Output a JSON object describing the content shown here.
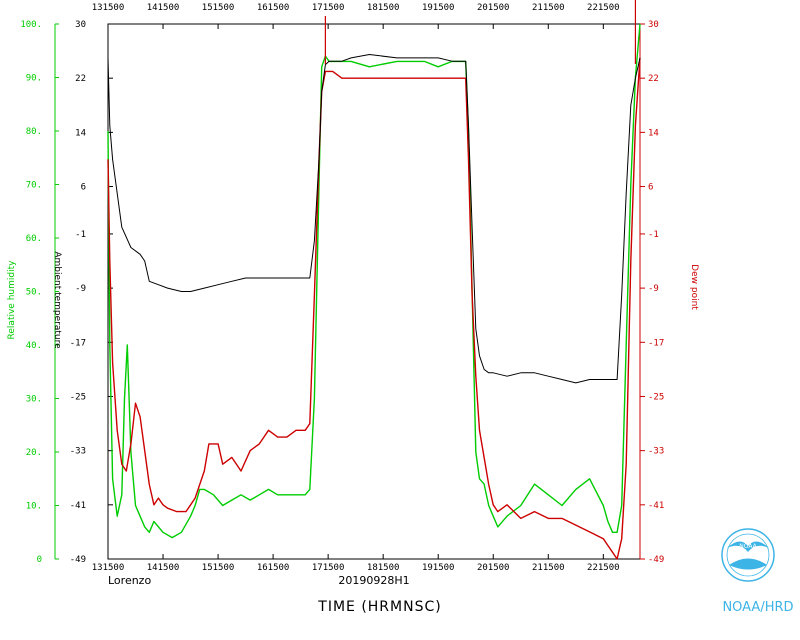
{
  "chart_data": {
    "type": "line",
    "xlabel": "TIME (HRMNSC)",
    "storm_label": "Lorenzo",
    "flight_label": "20190928H1",
    "xlim": [
      "13:15:00",
      "22:55:00"
    ],
    "x_ticks": [
      "131500",
      "141500",
      "151500",
      "161500",
      "171500",
      "181500",
      "191500",
      "201500",
      "211500",
      "221500"
    ],
    "x_tick_times": [
      "13:15",
      "14:15",
      "15:15",
      "16:15",
      "17:15",
      "18:15",
      "19:15",
      "20:15",
      "21:15",
      "22:15"
    ],
    "left_axis": {
      "label": "Relative humidity",
      "ylim": [
        0,
        100
      ],
      "ticks": [
        "0",
        "10.",
        "20.",
        "30.",
        "40.",
        "50.",
        "60.",
        "70.",
        "80.",
        "90.",
        "100."
      ],
      "tick_values": [
        0,
        10,
        20,
        30,
        40,
        50,
        60,
        70,
        80,
        90,
        100
      ],
      "color": "#00cc00"
    },
    "temp_axis": {
      "label": "Ambient temperature",
      "ylim": [
        -49,
        30
      ],
      "ticks": [
        "-49",
        "-41",
        "-33",
        "-25",
        "-17",
        "-9",
        "-1",
        "6",
        "14",
        "22",
        "30"
      ],
      "tick_values": [
        -49,
        -41,
        -33,
        -25,
        -17,
        -9,
        -1,
        6,
        14,
        22,
        30
      ],
      "color": "#000000"
    },
    "right_axis": {
      "label": "Dew point",
      "ylim": [
        -49,
        30
      ],
      "ticks": [
        "-49",
        "-41",
        "-33",
        "-25",
        "-17",
        "-9",
        "-1",
        "6",
        "14",
        "22",
        "30"
      ],
      "tick_values": [
        -49,
        -41,
        -33,
        -25,
        -17,
        -9,
        -1,
        6,
        14,
        22,
        30
      ],
      "color": "#cc0000"
    },
    "series": [
      {
        "name": "Ambient temperature",
        "axis": "temp",
        "color": "#000000",
        "x": [
          "13:15",
          "13:17",
          "13:20",
          "13:25",
          "13:30",
          "13:40",
          "13:50",
          "13:55",
          "14:00",
          "14:10",
          "14:20",
          "14:35",
          "14:45",
          "15:00",
          "15:15",
          "15:30",
          "15:45",
          "16:00",
          "16:15",
          "16:30",
          "16:45",
          "16:55",
          "17:00",
          "17:05",
          "17:08",
          "17:12",
          "17:16",
          "17:20",
          "17:30",
          "17:40",
          "18:00",
          "18:30",
          "19:00",
          "19:15",
          "19:30",
          "19:45",
          "19:48",
          "19:52",
          "19:56",
          "20:00",
          "20:05",
          "20:10",
          "20:15",
          "20:30",
          "20:45",
          "21:00",
          "21:15",
          "21:30",
          "21:45",
          "22:00",
          "22:15",
          "22:25",
          "22:30",
          "22:35",
          "22:40",
          "22:45",
          "22:50",
          "22:55"
        ],
        "y": [
          25,
          15,
          10,
          5,
          0,
          -3,
          -4,
          -5,
          -8,
          -8.5,
          -9,
          -9.5,
          -9.5,
          -9,
          -8.5,
          -8,
          -7.5,
          -7.5,
          -7.5,
          -7.5,
          -7.5,
          -7.5,
          -2,
          10,
          20,
          24,
          24.5,
          24.5,
          24.5,
          25,
          25.5,
          25,
          25,
          25,
          24.5,
          24.5,
          15,
          0,
          -15,
          -19,
          -21,
          -21.5,
          -21.5,
          -22,
          -21.5,
          -21.5,
          -22,
          -22.5,
          -23,
          -22.5,
          -22.5,
          -22.5,
          -22.5,
          -10,
          5,
          18,
          22,
          25
        ]
      },
      {
        "name": "Dew point",
        "axis": "dew",
        "color": "#cc0000",
        "x": [
          "13:15",
          "13:17",
          "13:20",
          "13:25",
          "13:30",
          "13:35",
          "13:40",
          "13:45",
          "13:50",
          "13:55",
          "14:00",
          "14:05",
          "14:10",
          "14:15",
          "14:20",
          "14:30",
          "14:40",
          "14:45",
          "14:50",
          "15:00",
          "15:05",
          "15:15",
          "15:20",
          "15:30",
          "15:40",
          "15:50",
          "16:00",
          "16:10",
          "16:20",
          "16:30",
          "16:40",
          "16:50",
          "16:55",
          "17:00",
          "17:05",
          "17:08",
          "17:12",
          "17:16",
          "17:20",
          "17:30",
          "17:40",
          "18:00",
          "18:30",
          "19:00",
          "19:15",
          "19:30",
          "19:45",
          "19:48",
          "19:52",
          "19:56",
          "20:00",
          "20:05",
          "20:10",
          "20:15",
          "20:20",
          "20:30",
          "20:45",
          "21:00",
          "21:15",
          "21:30",
          "21:45",
          "22:00",
          "22:15",
          "22:20",
          "22:25",
          "22:30",
          "22:35",
          "22:40",
          "22:45",
          "22:50",
          "22:55"
        ],
        "y": [
          10,
          -5,
          -20,
          -30,
          -35,
          -36,
          -32,
          -26,
          -28,
          -33,
          -38,
          -41,
          -40,
          -41,
          -41.5,
          -42,
          -42,
          -41,
          -40,
          -36,
          -32,
          -32,
          -35,
          -34,
          -36,
          -33,
          -32,
          -30,
          -31,
          -31,
          -30,
          -30,
          -29,
          -10,
          10,
          20,
          23,
          23,
          23,
          22,
          22,
          22,
          22,
          22,
          22,
          22,
          22,
          10,
          -10,
          -22,
          -30,
          -34,
          -38,
          -41,
          -42,
          -41,
          -43,
          -42,
          -43,
          -43,
          -44,
          -45,
          -46,
          -47,
          -48,
          -49,
          -46,
          -35,
          -5,
          15,
          25
        ]
      },
      {
        "name": "Relative humidity",
        "axis": "rh",
        "color": "#00cc00",
        "x": [
          "13:15",
          "13:17",
          "13:20",
          "13:25",
          "13:30",
          "13:33",
          "13:36",
          "13:40",
          "13:45",
          "13:50",
          "13:55",
          "14:00",
          "14:05",
          "14:15",
          "14:25",
          "14:35",
          "14:45",
          "14:50",
          "14:55",
          "15:00",
          "15:10",
          "15:20",
          "15:30",
          "15:40",
          "15:50",
          "16:00",
          "16:10",
          "16:20",
          "16:30",
          "16:40",
          "16:50",
          "16:55",
          "17:00",
          "17:05",
          "17:08",
          "17:12",
          "17:16",
          "17:20",
          "17:30",
          "17:40",
          "18:00",
          "18:30",
          "19:00",
          "19:15",
          "19:30",
          "19:45",
          "19:48",
          "19:52",
          "19:56",
          "20:00",
          "20:05",
          "20:10",
          "20:15",
          "20:20",
          "20:30",
          "20:45",
          "21:00",
          "21:15",
          "21:30",
          "21:45",
          "22:00",
          "22:15",
          "22:20",
          "22:25",
          "22:30",
          "22:35",
          "22:40",
          "22:45",
          "22:50",
          "22:55"
        ],
        "y": [
          80,
          40,
          15,
          8,
          12,
          30,
          40,
          20,
          10,
          8,
          6,
          5,
          7,
          5,
          4,
          5,
          8,
          10,
          13,
          13,
          12,
          10,
          11,
          12,
          11,
          12,
          13,
          12,
          12,
          12,
          12,
          13,
          30,
          70,
          92,
          94,
          93,
          93,
          93,
          93,
          92,
          93,
          93,
          92,
          93,
          93,
          80,
          50,
          20,
          15,
          14,
          10,
          8,
          6,
          8,
          10,
          14,
          12,
          10,
          13,
          15,
          10,
          7,
          5,
          5,
          10,
          40,
          70,
          90,
          100
        ]
      }
    ]
  },
  "logo": {
    "text": "NOAA/HRD",
    "emblem_text": "NOAA",
    "icon": "noaa-seagull-emblem-icon",
    "color": "#3cb4e6"
  }
}
